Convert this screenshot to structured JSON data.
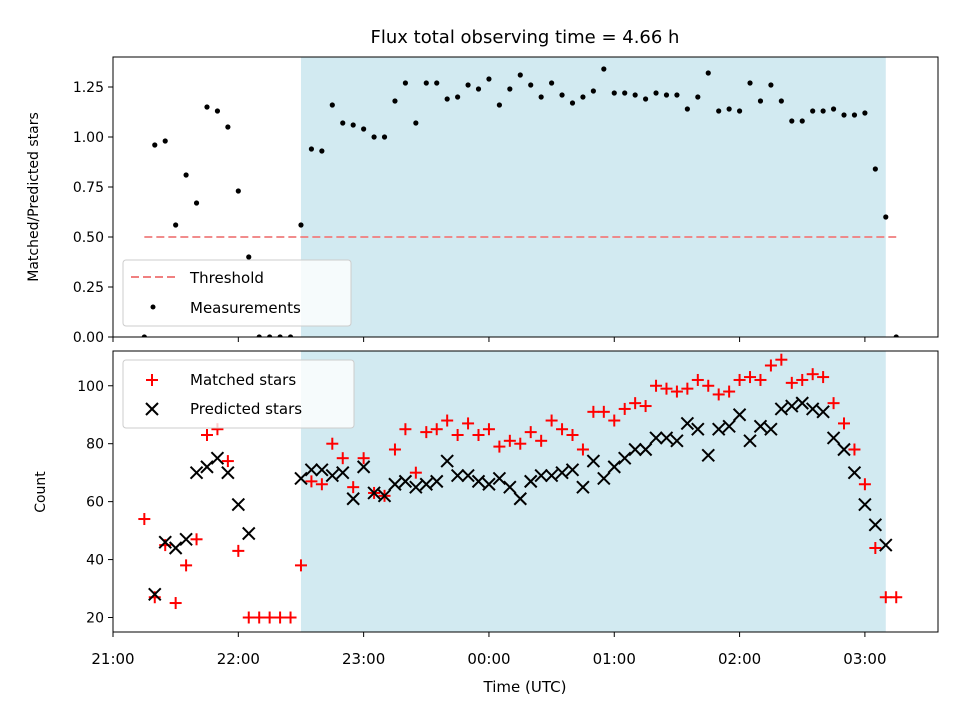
{
  "chart_data": [
    {
      "type": "scatter",
      "title": "Flux total observing time = 4.66 h",
      "ylabel": "Matched/Predicted stars",
      "xlabel": "",
      "xlim": [
        "21:00",
        "03:35"
      ],
      "ylim": [
        0,
        1.4
      ],
      "yticks": [
        "0.00",
        "0.25",
        "0.50",
        "0.75",
        "1.00",
        "1.25"
      ],
      "shaded_span": {
        "start": "22:30",
        "end": "03:10",
        "color": "#add8e6"
      },
      "legend_position": "lower-left",
      "series": [
        {
          "name": "Threshold",
          "type": "line",
          "style": "dashed",
          "color": "#f08080",
          "x": [
            "21:15",
            "03:15"
          ],
          "y": [
            0.5,
            0.5
          ]
        },
        {
          "name": "Measurements",
          "type": "scatter",
          "marker": "dot",
          "color": "#000000",
          "x": [
            "21:15",
            "21:20",
            "21:25",
            "21:30",
            "21:35",
            "21:40",
            "21:45",
            "21:50",
            "21:55",
            "22:00",
            "22:05",
            "22:10",
            "22:15",
            "22:20",
            "22:25",
            "22:30",
            "22:35",
            "22:40",
            "22:45",
            "22:50",
            "22:55",
            "23:00",
            "23:05",
            "23:10",
            "23:15",
            "23:20",
            "23:25",
            "23:30",
            "23:35",
            "23:40",
            "23:45",
            "23:50",
            "23:55",
            "00:00",
            "00:05",
            "00:10",
            "00:15",
            "00:20",
            "00:25",
            "00:30",
            "00:35",
            "00:40",
            "00:45",
            "00:50",
            "00:55",
            "01:00",
            "01:05",
            "01:10",
            "01:15",
            "01:20",
            "01:25",
            "01:30",
            "01:35",
            "01:40",
            "01:45",
            "01:50",
            "01:55",
            "02:00",
            "02:05",
            "02:10",
            "02:15",
            "02:20",
            "02:25",
            "02:30",
            "02:35",
            "02:40",
            "02:45",
            "02:50",
            "02:55",
            "03:00",
            "03:05",
            "03:10",
            "03:15"
          ],
          "y": [
            0.0,
            0.96,
            0.98,
            0.56,
            0.81,
            0.67,
            1.15,
            1.13,
            1.05,
            0.73,
            0.4,
            0.0,
            0.0,
            0.0,
            0.0,
            0.56,
            0.94,
            0.93,
            1.16,
            1.07,
            1.06,
            1.04,
            1.0,
            1.0,
            1.18,
            1.27,
            1.07,
            1.27,
            1.27,
            1.19,
            1.2,
            1.26,
            1.24,
            1.29,
            1.16,
            1.24,
            1.31,
            1.26,
            1.2,
            1.27,
            1.21,
            1.17,
            1.2,
            1.23,
            1.34,
            1.22,
            1.22,
            1.21,
            1.19,
            1.22,
            1.21,
            1.21,
            1.14,
            1.2,
            1.32,
            1.13,
            1.14,
            1.13,
            1.27,
            1.18,
            1.26,
            1.18,
            1.08,
            1.08,
            1.13,
            1.13,
            1.14,
            1.11,
            1.11,
            1.12,
            0.84,
            0.6,
            0.0
          ]
        }
      ]
    },
    {
      "type": "scatter",
      "title": "",
      "ylabel": "Count",
      "xlabel": "Time (UTC)",
      "xlim": [
        "21:00",
        "03:35"
      ],
      "ylim": [
        15,
        112
      ],
      "yticks": [
        "20",
        "40",
        "60",
        "80",
        "100"
      ],
      "xticks": [
        "21:00",
        "22:00",
        "23:00",
        "00:00",
        "01:00",
        "02:00",
        "03:00"
      ],
      "shaded_span": {
        "start": "22:30",
        "end": "03:10",
        "color": "#add8e6"
      },
      "legend_position": "upper-left",
      "series": [
        {
          "name": "Matched stars",
          "marker": "plus",
          "color": "#ff0000",
          "x": [
            "21:15",
            "21:20",
            "21:25",
            "21:30",
            "21:35",
            "21:40",
            "21:45",
            "21:50",
            "21:55",
            "22:00",
            "22:05",
            "22:10",
            "22:15",
            "22:20",
            "22:25",
            "22:30",
            "22:35",
            "22:40",
            "22:45",
            "22:50",
            "22:55",
            "23:00",
            "23:05",
            "23:10",
            "23:15",
            "23:20",
            "23:25",
            "23:30",
            "23:35",
            "23:40",
            "23:45",
            "23:50",
            "23:55",
            "00:00",
            "00:05",
            "00:10",
            "00:15",
            "00:20",
            "00:25",
            "00:30",
            "00:35",
            "00:40",
            "00:45",
            "00:50",
            "00:55",
            "01:00",
            "01:05",
            "01:10",
            "01:15",
            "01:20",
            "01:25",
            "01:30",
            "01:35",
            "01:40",
            "01:45",
            "01:50",
            "01:55",
            "02:00",
            "02:05",
            "02:10",
            "02:15",
            "02:20",
            "02:25",
            "02:30",
            "02:35",
            "02:40",
            "02:45",
            "02:50",
            "02:55",
            "03:00",
            "03:05",
            "03:10",
            "03:15"
          ],
          "y": [
            54,
            27,
            45,
            25,
            38,
            47,
            83,
            85,
            74,
            43,
            20,
            20,
            20,
            20,
            20,
            38,
            67,
            66,
            80,
            75,
            65,
            75,
            63,
            62,
            78,
            85,
            70,
            84,
            85,
            88,
            83,
            87,
            83,
            85,
            79,
            81,
            80,
            84,
            81,
            88,
            85,
            83,
            78,
            91,
            91,
            88,
            92,
            94,
            93,
            100,
            99,
            98,
            99,
            102,
            100,
            97,
            98,
            102,
            103,
            102,
            107,
            109,
            101,
            102,
            104,
            103,
            94,
            87,
            78,
            66,
            44,
            27,
            27
          ]
        },
        {
          "name": "Predicted stars",
          "marker": "x",
          "color": "#000000",
          "x": [
            "21:20",
            "21:25",
            "21:30",
            "21:35",
            "21:40",
            "21:45",
            "21:50",
            "21:55",
            "22:00",
            "22:05",
            "22:30",
            "22:35",
            "22:40",
            "22:45",
            "22:50",
            "22:55",
            "23:00",
            "23:05",
            "23:10",
            "23:15",
            "23:20",
            "23:25",
            "23:30",
            "23:35",
            "23:40",
            "23:45",
            "23:50",
            "23:55",
            "00:00",
            "00:05",
            "00:10",
            "00:15",
            "00:20",
            "00:25",
            "00:30",
            "00:35",
            "00:40",
            "00:45",
            "00:50",
            "00:55",
            "01:00",
            "01:05",
            "01:10",
            "01:15",
            "01:20",
            "01:25",
            "01:30",
            "01:35",
            "01:40",
            "01:45",
            "01:50",
            "01:55",
            "02:00",
            "02:05",
            "02:10",
            "02:15",
            "02:20",
            "02:25",
            "02:30",
            "02:35",
            "02:40",
            "02:45",
            "02:50",
            "02:55",
            "03:00",
            "03:05",
            "03:10"
          ],
          "y": [
            28,
            46,
            44,
            47,
            70,
            72,
            75,
            70,
            59,
            49,
            68,
            71,
            71,
            69,
            70,
            61,
            72,
            63,
            62,
            66,
            67,
            65,
            66,
            67,
            74,
            69,
            69,
            67,
            66,
            68,
            65,
            61,
            67,
            69,
            69,
            70,
            71,
            65,
            74,
            68,
            72,
            75,
            78,
            78,
            82,
            82,
            81,
            87,
            85,
            76,
            85,
            86,
            90,
            81,
            86,
            85,
            92,
            93,
            94,
            92,
            91,
            82,
            78,
            70,
            59,
            52,
            45
          ]
        }
      ]
    }
  ]
}
